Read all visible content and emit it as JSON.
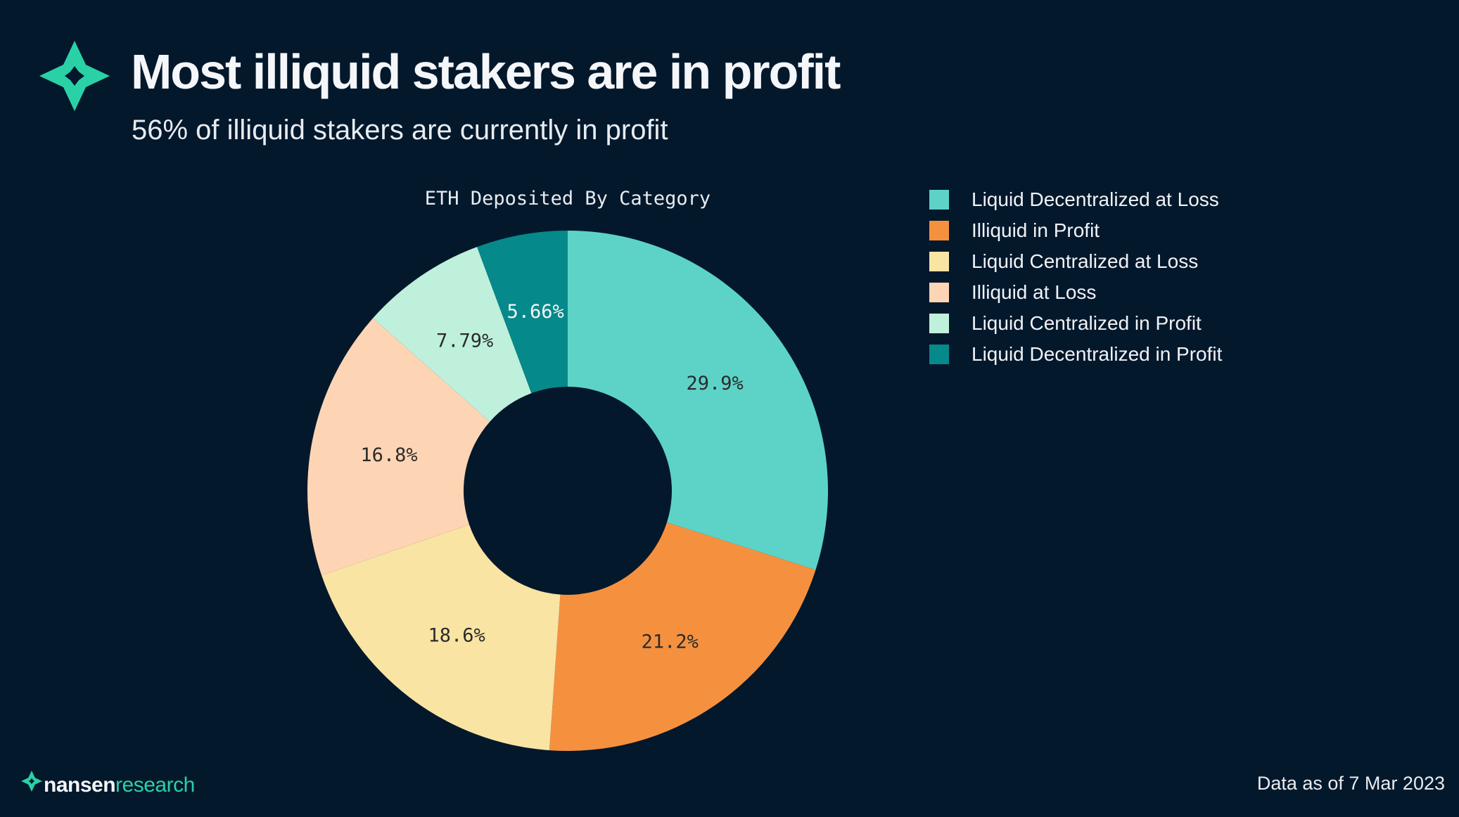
{
  "header": {
    "title": "Most illiquid stakers are in profit",
    "subtitle": "56% of illiquid stakers are currently in profit"
  },
  "colors": {
    "background": "#04182c",
    "brand_accent": "#2ad1a6"
  },
  "icons": {
    "logo": "nansen-star-icon"
  },
  "footer": {
    "brand_name": "nansen",
    "brand_suffix": "research",
    "date_note": "Data as of 7 Mar 2023"
  },
  "chart_data": {
    "type": "pie",
    "donut": true,
    "title": "ETH Deposited By Category",
    "legend_position": "right",
    "slices": [
      {
        "label": "Liquid Decentralized at Loss",
        "value": 29.9,
        "display": "29.9%",
        "color": "#5dd3c8"
      },
      {
        "label": "Illiquid in Profit",
        "value": 21.2,
        "display": "21.2%",
        "color": "#f5913e"
      },
      {
        "label": "Liquid Centralized at Loss",
        "value": 18.6,
        "display": "18.6%",
        "color": "#f9e4a4"
      },
      {
        "label": "Illiquid at Loss",
        "value": 16.8,
        "display": "16.8%",
        "color": "#fed5b4"
      },
      {
        "label": "Liquid Centralized in Profit",
        "value": 7.79,
        "display": "7.79%",
        "color": "#bff0dc"
      },
      {
        "label": "Liquid Decentralized in Profit",
        "value": 5.66,
        "display": "5.66%",
        "color": "#06898a"
      }
    ]
  }
}
